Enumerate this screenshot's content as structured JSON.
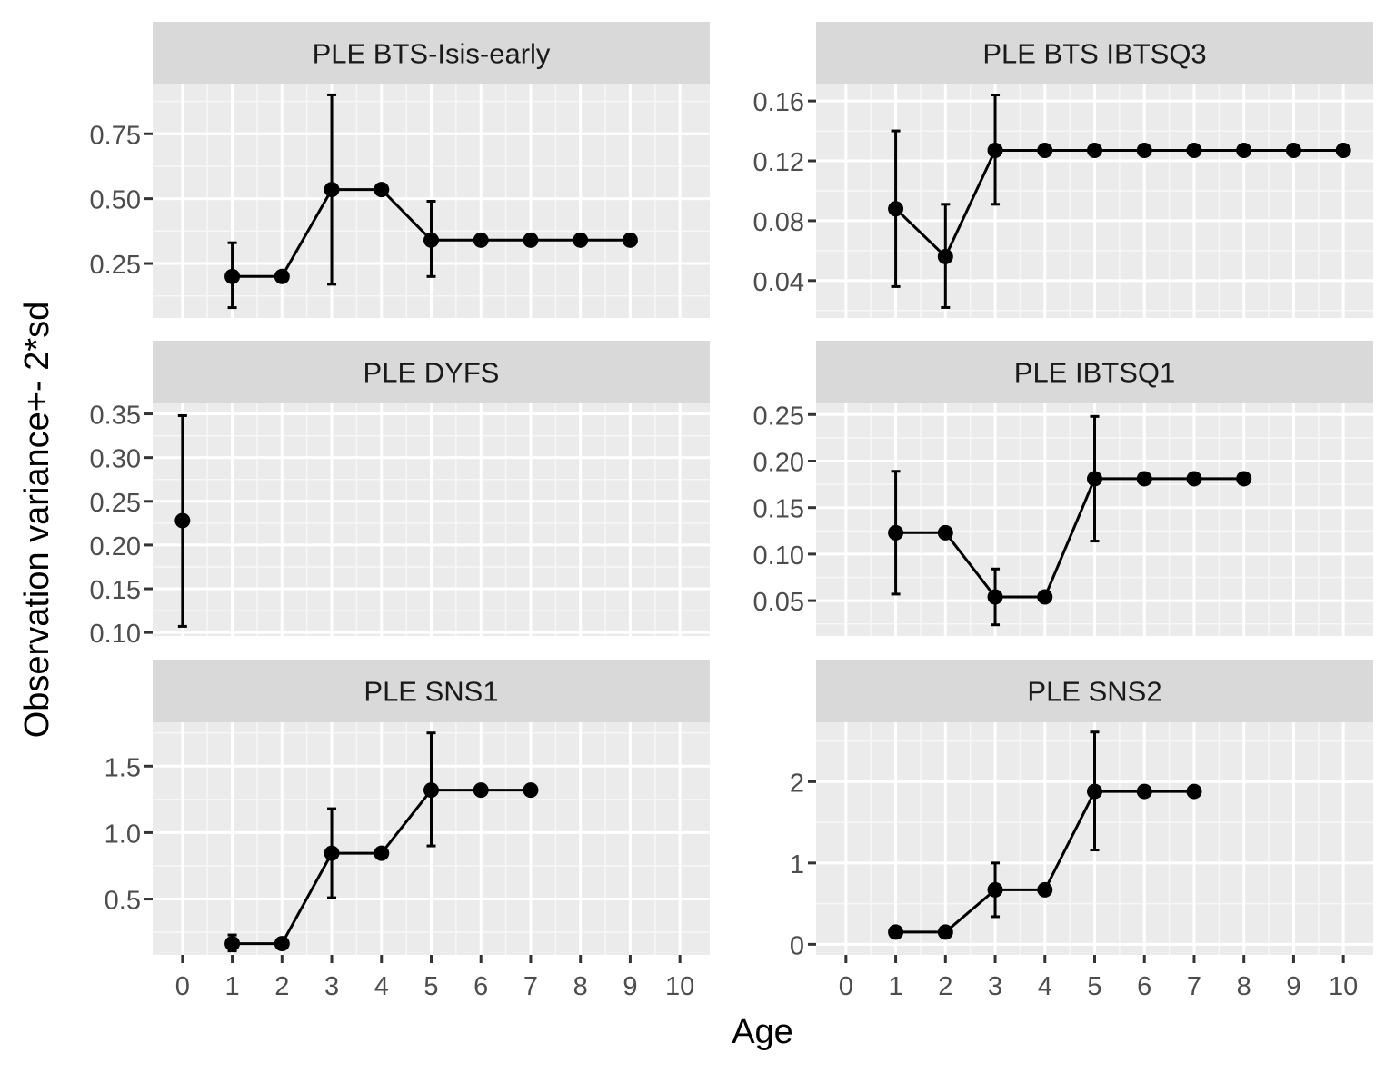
{
  "figure": {
    "xlabel": "Age",
    "ylabel": "Observation variance+- 2*sd"
  },
  "chart_data": [
    {
      "type": "line",
      "title": "PLE BTS-Isis-early",
      "x_ticks": [
        "0",
        "1",
        "2",
        "3",
        "4",
        "5",
        "6",
        "7",
        "8",
        "9",
        "10"
      ],
      "xlim": [
        -0.6,
        10.6
      ],
      "y_ticks": [
        "0.25",
        "0.50",
        "0.75"
      ],
      "ylim": [
        0.04,
        0.94
      ],
      "points": [
        {
          "x": 1,
          "y": 0.2,
          "lo": 0.08,
          "hi": 0.33
        },
        {
          "x": 2,
          "y": 0.2
        },
        {
          "x": 3,
          "y": 0.535,
          "lo": 0.17,
          "hi": 0.9
        },
        {
          "x": 4,
          "y": 0.535
        },
        {
          "x": 5,
          "y": 0.34,
          "lo": 0.2,
          "hi": 0.49
        },
        {
          "x": 6,
          "y": 0.34
        },
        {
          "x": 7,
          "y": 0.34
        },
        {
          "x": 8,
          "y": 0.34
        },
        {
          "x": 9,
          "y": 0.34
        }
      ]
    },
    {
      "type": "line",
      "title": "PLE BTS IBTSQ3",
      "x_ticks": [
        "0",
        "1",
        "2",
        "3",
        "4",
        "5",
        "6",
        "7",
        "8",
        "9",
        "10"
      ],
      "xlim": [
        -0.6,
        10.6
      ],
      "y_ticks": [
        "0.04",
        "0.08",
        "0.12",
        "0.16"
      ],
      "ylim": [
        0.015,
        0.171
      ],
      "points": [
        {
          "x": 1,
          "y": 0.088,
          "lo": 0.036,
          "hi": 0.14
        },
        {
          "x": 2,
          "y": 0.056,
          "lo": 0.022,
          "hi": 0.091
        },
        {
          "x": 3,
          "y": 0.127,
          "lo": 0.091,
          "hi": 0.164
        },
        {
          "x": 4,
          "y": 0.127
        },
        {
          "x": 5,
          "y": 0.127
        },
        {
          "x": 6,
          "y": 0.127
        },
        {
          "x": 7,
          "y": 0.127
        },
        {
          "x": 8,
          "y": 0.127
        },
        {
          "x": 9,
          "y": 0.127
        },
        {
          "x": 10,
          "y": 0.127
        }
      ]
    },
    {
      "type": "line",
      "title": "PLE DYFS",
      "x_ticks": [
        "0",
        "1",
        "2",
        "3",
        "4",
        "5",
        "6",
        "7",
        "8",
        "9",
        "10"
      ],
      "xlim": [
        -0.6,
        10.6
      ],
      "y_ticks": [
        "0.10",
        "0.15",
        "0.20",
        "0.25",
        "0.30",
        "0.35"
      ],
      "ylim": [
        0.096,
        0.362
      ],
      "points": [
        {
          "x": 0,
          "y": 0.228,
          "lo": 0.107,
          "hi": 0.348
        }
      ]
    },
    {
      "type": "line",
      "title": "PLE IBTSQ1",
      "x_ticks": [
        "0",
        "1",
        "2",
        "3",
        "4",
        "5",
        "6",
        "7",
        "8",
        "9",
        "10"
      ],
      "xlim": [
        -0.6,
        10.6
      ],
      "y_ticks": [
        "0.05",
        "0.10",
        "0.15",
        "0.20",
        "0.25"
      ],
      "ylim": [
        0.012,
        0.262
      ],
      "points": [
        {
          "x": 1,
          "y": 0.123,
          "lo": 0.057,
          "hi": 0.189
        },
        {
          "x": 2,
          "y": 0.123
        },
        {
          "x": 3,
          "y": 0.054,
          "lo": 0.024,
          "hi": 0.084
        },
        {
          "x": 4,
          "y": 0.054
        },
        {
          "x": 5,
          "y": 0.181,
          "lo": 0.114,
          "hi": 0.248
        },
        {
          "x": 6,
          "y": 0.181
        },
        {
          "x": 7,
          "y": 0.181
        },
        {
          "x": 8,
          "y": 0.181
        }
      ]
    },
    {
      "type": "line",
      "title": "PLE SNS1",
      "x_ticks": [
        "0",
        "1",
        "2",
        "3",
        "4",
        "5",
        "6",
        "7",
        "8",
        "9",
        "10"
      ],
      "xlim": [
        -0.6,
        10.6
      ],
      "y_ticks": [
        "0.5",
        "1.0",
        "1.5"
      ],
      "ylim": [
        0.08,
        1.83
      ],
      "points": [
        {
          "x": 1,
          "y": 0.165,
          "lo": 0.11,
          "hi": 0.23
        },
        {
          "x": 2,
          "y": 0.165
        },
        {
          "x": 3,
          "y": 0.845,
          "lo": 0.51,
          "hi": 1.18
        },
        {
          "x": 4,
          "y": 0.845
        },
        {
          "x": 5,
          "y": 1.32,
          "lo": 0.9,
          "hi": 1.75
        },
        {
          "x": 6,
          "y": 1.32
        },
        {
          "x": 7,
          "y": 1.32
        }
      ]
    },
    {
      "type": "line",
      "title": "PLE SNS2",
      "x_ticks": [
        "0",
        "1",
        "2",
        "3",
        "4",
        "5",
        "6",
        "7",
        "8",
        "9",
        "10"
      ],
      "xlim": [
        -0.6,
        10.6
      ],
      "y_ticks": [
        "0",
        "1",
        "2"
      ],
      "ylim": [
        -0.13,
        2.73
      ],
      "points": [
        {
          "x": 1,
          "y": 0.15
        },
        {
          "x": 2,
          "y": 0.15
        },
        {
          "x": 3,
          "y": 0.67,
          "lo": 0.34,
          "hi": 1.0
        },
        {
          "x": 4,
          "y": 0.67
        },
        {
          "x": 5,
          "y": 1.88,
          "lo": 1.16,
          "hi": 2.61
        },
        {
          "x": 6,
          "y": 1.88
        },
        {
          "x": 7,
          "y": 1.88
        }
      ]
    }
  ]
}
